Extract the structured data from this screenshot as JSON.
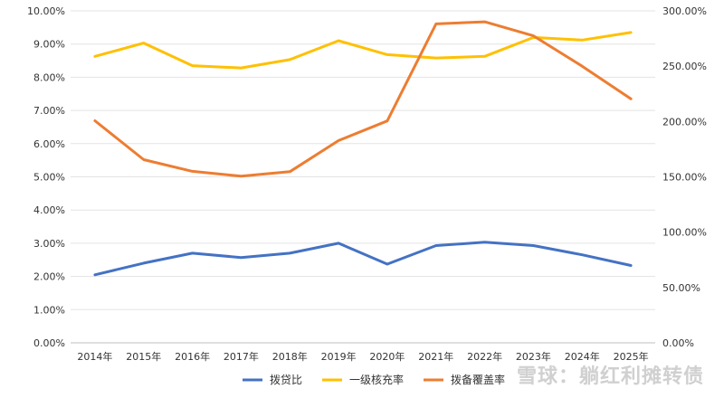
{
  "chart_data": {
    "type": "line",
    "categories": [
      "2014年",
      "2015年",
      "2016年",
      "2017年",
      "2018年",
      "2019年",
      "2020年",
      "2021年",
      "2022年",
      "2023年",
      "2024年",
      "2025年"
    ],
    "y_left": {
      "ticks": [
        "0.00%",
        "1.00%",
        "2.00%",
        "3.00%",
        "4.00%",
        "5.00%",
        "6.00%",
        "7.00%",
        "8.00%",
        "9.00%",
        "10.00%"
      ],
      "ylim": [
        0,
        10
      ]
    },
    "y_right": {
      "ticks": [
        "0.00%",
        "50.00%",
        "100.00%",
        "150.00%",
        "200.00%",
        "250.00%",
        "300.00%"
      ],
      "ylim": [
        0,
        300
      ]
    },
    "grid": true,
    "legend_position": "bottom",
    "series": [
      {
        "name": "拨贷比",
        "axis": "left",
        "color": "#4472C4",
        "values": [
          2.05,
          2.4,
          2.7,
          2.57,
          2.7,
          3.0,
          2.37,
          2.93,
          3.03,
          2.93,
          2.65,
          2.33
        ]
      },
      {
        "name": "一级核充率",
        "axis": "left",
        "color": "#FFC000",
        "values": [
          8.63,
          9.03,
          8.35,
          8.28,
          8.53,
          9.1,
          8.68,
          8.58,
          8.63,
          9.2,
          9.12,
          9.35
        ]
      },
      {
        "name": "拨备覆盖率",
        "axis": "right",
        "color": "#ED7D31",
        "values": [
          200.7,
          165.5,
          155.0,
          150.6,
          154.7,
          182.8,
          200.5,
          288.2,
          290.1,
          277.4,
          250.0,
          220.5
        ]
      }
    ]
  },
  "watermark": "雪球：躺红利摊转债"
}
